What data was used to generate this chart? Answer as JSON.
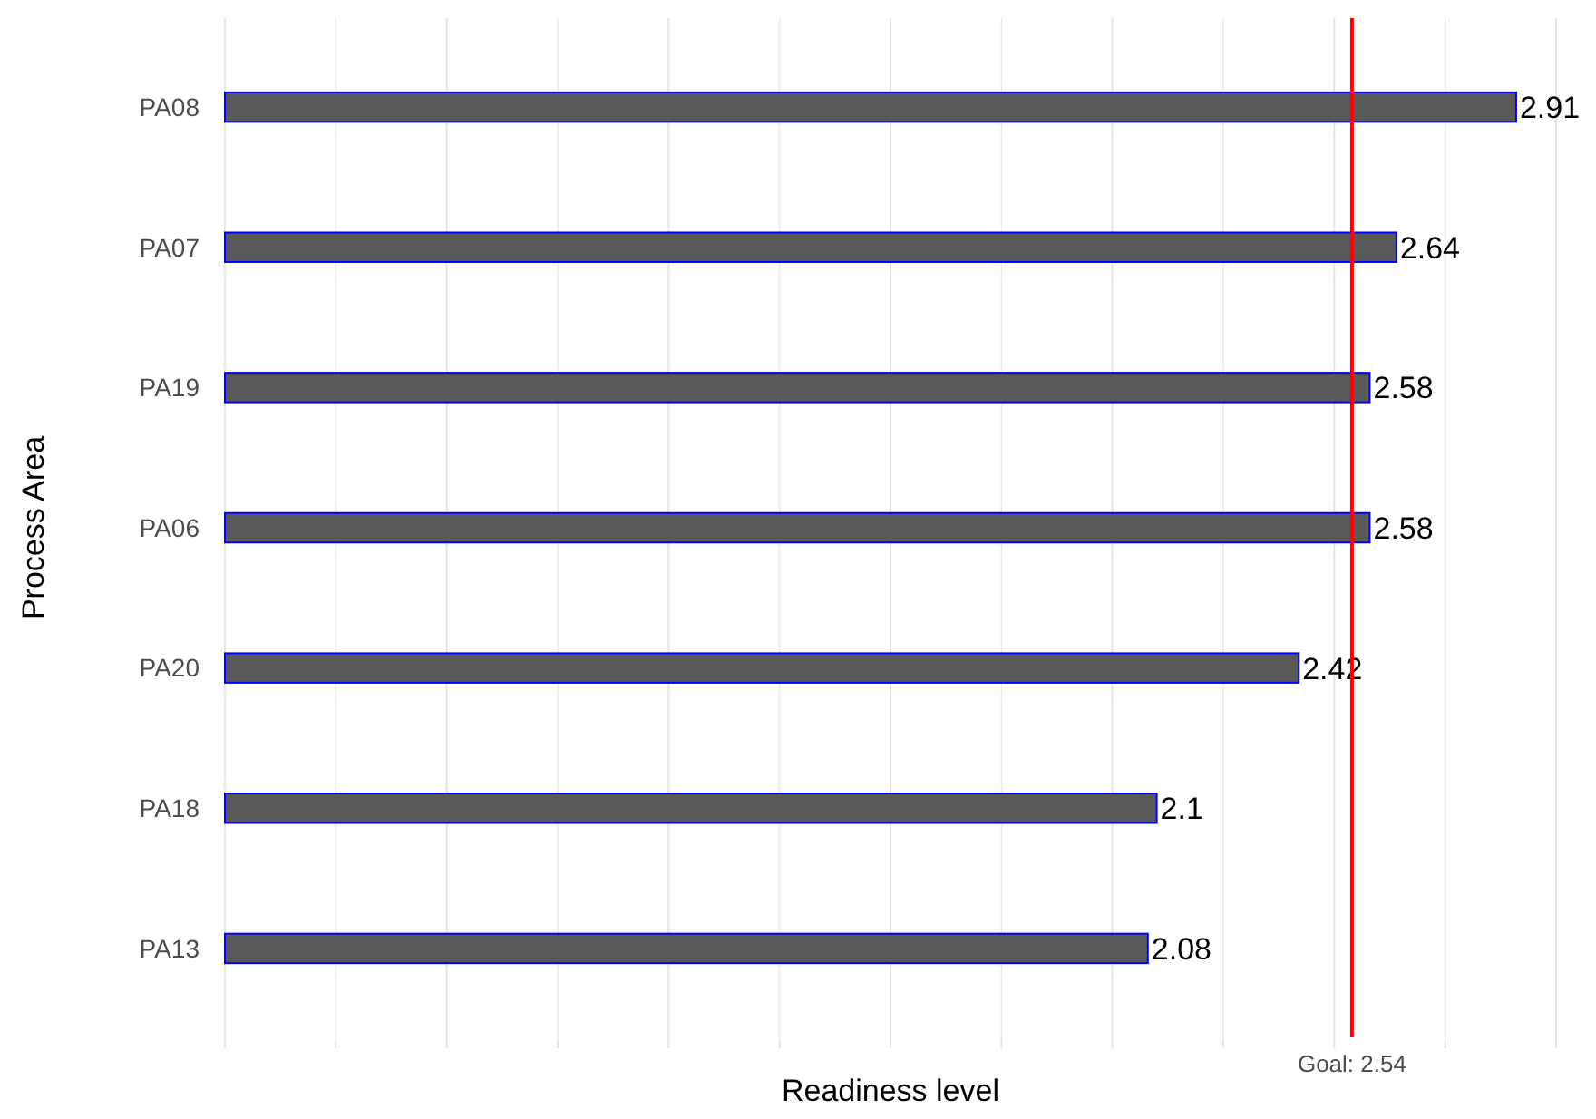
{
  "chart_data": {
    "type": "bar",
    "orientation": "horizontal",
    "xlabel": "Readiness level",
    "ylabel": "Process Area",
    "categories": [
      "PA08",
      "PA07",
      "PA19",
      "PA06",
      "PA20",
      "PA18",
      "PA13"
    ],
    "values": [
      2.91,
      2.64,
      2.58,
      2.58,
      2.42,
      2.1,
      2.08
    ],
    "color": "#595959",
    "xlim": [
      0,
      3
    ],
    "xticks": [
      {
        "value": 0,
        "label": null
      },
      {
        "value": 0.25,
        "label": null
      },
      {
        "value": 0.5,
        "label": null
      },
      {
        "value": 0.75,
        "label": null
      },
      {
        "value": 1,
        "label": null
      },
      {
        "value": 1.25,
        "label": null
      },
      {
        "value": 1.5,
        "label": null
      },
      {
        "value": 1.75,
        "label": null
      },
      {
        "value": 2,
        "label": null
      },
      {
        "value": 2.25,
        "label": null
      },
      {
        "value": 2.5,
        "label": null
      },
      {
        "value": 2.75,
        "label": null
      },
      {
        "value": 3,
        "label": null
      }
    ],
    "grid": "x",
    "tick_labels": "y",
    "data_labels": true,
    "ref_lines": [
      {
        "axis": "x",
        "value": 2.54,
        "label": "Goal: 2.54",
        "color": "#ff0000"
      }
    ]
  }
}
